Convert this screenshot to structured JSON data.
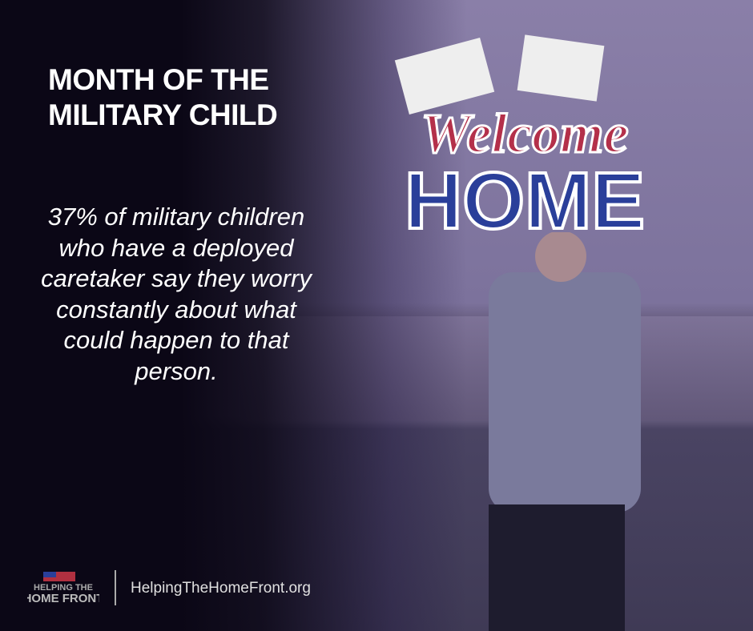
{
  "title": {
    "line1": "MONTH OF THE",
    "line2": "MILITARY CHILD"
  },
  "quote": "37% of military children who have a deployed caretaker say they worry constantly about what could happen to that person.",
  "sign": {
    "line1": "Welcome",
    "line2": "HOME"
  },
  "logo": {
    "line1": "HELPING THE",
    "line2": "HOME FRONT"
  },
  "url": "HelpingTheHomeFront.org",
  "colors": {
    "background": "#0b0716",
    "photo_tint": "#7c729c",
    "text": "#ffffff"
  }
}
